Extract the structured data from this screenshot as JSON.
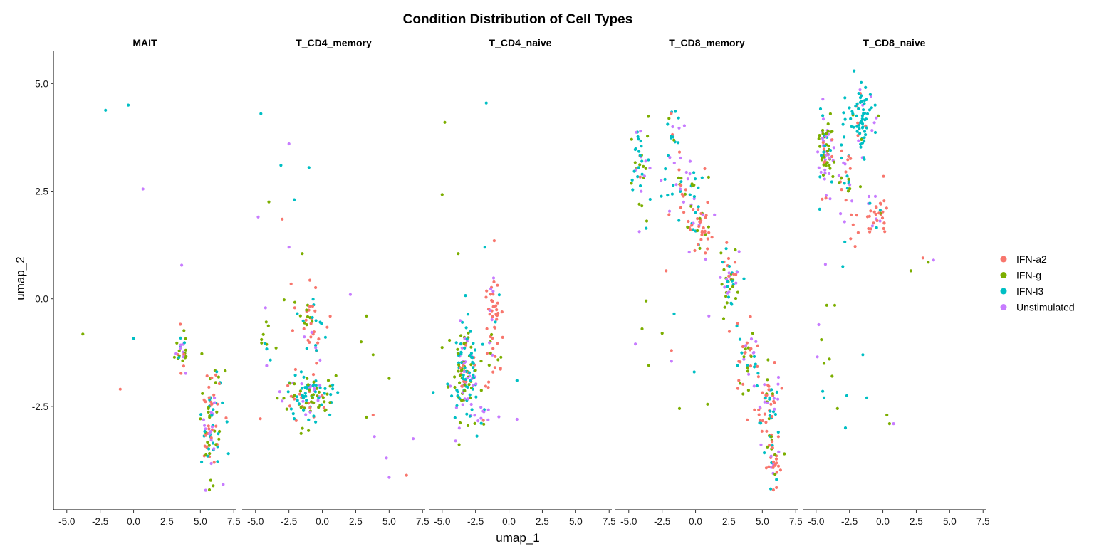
{
  "chart_data": {
    "type": "scatter",
    "title": "Condition Distribution of Cell Types",
    "xlabel": "umap_1",
    "ylabel": "umap_2",
    "xlim": [
      -6.0,
      7.7
    ],
    "ylim": [
      -4.9,
      5.75
    ],
    "xticks": [
      -5.0,
      -2.5,
      0.0,
      2.5,
      5.0,
      7.5
    ],
    "xtick_labels": [
      "-5.0",
      "-2.5",
      "0.0",
      "2.5",
      "5.0",
      "7.5"
    ],
    "yticks": [
      -2.5,
      0.0,
      2.5,
      5.0
    ],
    "ytick_labels": [
      "-2.5",
      "0.0",
      "2.5",
      "5.0"
    ],
    "grid": false,
    "legend_position": "right",
    "legend_labels": [
      "IFN-a2",
      "IFN-g",
      "IFN-l3",
      "Unstimulated"
    ],
    "colors": {
      "IFN-a2": "#F8766D",
      "IFN-g": "#7CAE00",
      "IFN-l3": "#00BFC4",
      "Unstimulated": "#C77CFF"
    },
    "panels": [
      {
        "name": "MAIT",
        "outliers": [
          [
            -2.1,
            4.38,
            "IFN-l3"
          ],
          [
            -0.4,
            4.5,
            "IFN-l3"
          ],
          [
            0.7,
            2.55,
            "Unstimulated"
          ],
          [
            -3.8,
            -0.82,
            "IFN-g"
          ],
          [
            0.0,
            -0.92,
            "IFN-l3"
          ],
          [
            -1.0,
            -2.1,
            "IFN-a2"
          ],
          [
            3.6,
            0.78,
            "Unstimulated"
          ]
        ],
        "clusters": [
          {
            "cx": 3.6,
            "cy": -1.2,
            "sx": 0.35,
            "sy": 0.4,
            "n": 28,
            "w": {
              "IFN-a2": 0.15,
              "IFN-g": 0.4,
              "IFN-l3": 0.2,
              "Unstimulated": 0.25
            }
          },
          {
            "cx": 5.8,
            "cy": -2.9,
            "sx": 0.6,
            "sy": 0.85,
            "n": 95,
            "w": {
              "IFN-a2": 0.3,
              "IFN-g": 0.22,
              "IFN-l3": 0.33,
              "Unstimulated": 0.15
            }
          }
        ]
      },
      {
        "name": "T_CD4_memory",
        "outliers": [
          [
            -4.6,
            4.3,
            "IFN-l3"
          ],
          [
            -2.5,
            3.6,
            "Unstimulated"
          ],
          [
            -3.1,
            3.1,
            "IFN-l3"
          ],
          [
            -1.0,
            3.05,
            "IFN-l3"
          ],
          [
            -2.1,
            2.3,
            "IFN-l3"
          ],
          [
            -4.0,
            2.25,
            "IFN-g"
          ],
          [
            -4.8,
            1.9,
            "Unstimulated"
          ],
          [
            -3.0,
            1.85,
            "IFN-a2"
          ],
          [
            -2.5,
            1.2,
            "Unstimulated"
          ],
          [
            -1.5,
            1.05,
            "IFN-g"
          ],
          [
            3.3,
            -0.4,
            "IFN-g"
          ],
          [
            2.9,
            -1.0,
            "IFN-g"
          ],
          [
            3.8,
            -1.3,
            "IFN-g"
          ],
          [
            5.0,
            -1.85,
            "IFN-g"
          ],
          [
            3.3,
            -2.75,
            "IFN-g"
          ],
          [
            3.8,
            -2.7,
            "IFN-a2"
          ],
          [
            3.9,
            -3.2,
            "Unstimulated"
          ],
          [
            4.8,
            -3.7,
            "Unstimulated"
          ],
          [
            5.0,
            -4.15,
            "Unstimulated"
          ],
          [
            6.3,
            -4.1,
            "IFN-a2"
          ],
          [
            6.8,
            -3.25,
            "Unstimulated"
          ],
          [
            2.1,
            0.1,
            "Unstimulated"
          ]
        ],
        "clusters": [
          {
            "cx": -0.9,
            "cy": -0.5,
            "sx": 0.75,
            "sy": 0.55,
            "n": 50,
            "w": {
              "IFN-a2": 0.45,
              "IFN-g": 0.15,
              "IFN-l3": 0.25,
              "Unstimulated": 0.15
            }
          },
          {
            "cx": -1.2,
            "cy": -2.3,
            "sx": 1.35,
            "sy": 0.42,
            "n": 120,
            "w": {
              "IFN-a2": 0.18,
              "IFN-g": 0.28,
              "IFN-l3": 0.38,
              "Unstimulated": 0.16
            }
          },
          {
            "cx": -4.2,
            "cy": -1.0,
            "sx": 0.3,
            "sy": 0.5,
            "n": 12,
            "w": {
              "IFN-a2": 0.1,
              "IFN-g": 0.5,
              "IFN-l3": 0.2,
              "Unstimulated": 0.2
            }
          }
        ]
      },
      {
        "name": "T_CD4_naive",
        "outliers": [
          [
            -1.7,
            4.55,
            "IFN-l3"
          ],
          [
            -4.8,
            4.1,
            "IFN-g"
          ],
          [
            -5.0,
            2.42,
            "IFN-g"
          ],
          [
            -3.8,
            1.05,
            "IFN-g"
          ],
          [
            -1.8,
            1.2,
            "IFN-l3"
          ],
          [
            -1.1,
            1.35,
            "IFN-a2"
          ],
          [
            0.6,
            -1.9,
            "IFN-l3"
          ],
          [
            0.6,
            -2.8,
            "Unstimulated"
          ]
        ],
        "clusters": [
          {
            "cx": -3.4,
            "cy": -1.7,
            "sx": 0.75,
            "sy": 0.75,
            "n": 150,
            "w": {
              "IFN-a2": 0.05,
              "IFN-g": 0.33,
              "IFN-l3": 0.42,
              "Unstimulated": 0.2
            }
          },
          {
            "cx": -1.3,
            "cy": -0.25,
            "sx": 0.5,
            "sy": 0.5,
            "n": 40,
            "w": {
              "IFN-a2": 0.82,
              "IFN-g": 0.05,
              "IFN-l3": 0.08,
              "Unstimulated": 0.05
            }
          },
          {
            "cx": -1.1,
            "cy": -1.6,
            "sx": 0.5,
            "sy": 0.6,
            "n": 18,
            "w": {
              "IFN-a2": 0.6,
              "IFN-g": 0.1,
              "IFN-l3": 0.15,
              "Unstimulated": 0.15
            }
          },
          {
            "cx": -2.0,
            "cy": -2.7,
            "sx": 0.6,
            "sy": 0.2,
            "n": 14,
            "w": {
              "IFN-a2": 0.2,
              "IFN-g": 0.1,
              "IFN-l3": 0.3,
              "Unstimulated": 0.4
            }
          }
        ]
      },
      {
        "name": "T_CD8_memory",
        "outliers": [
          [
            -2.2,
            0.65,
            "IFN-a2"
          ],
          [
            -3.7,
            -0.05,
            "IFN-g"
          ],
          [
            -2.5,
            -0.8,
            "IFN-g"
          ],
          [
            -4.0,
            -0.7,
            "IFN-g"
          ],
          [
            -1.6,
            -0.35,
            "IFN-l3"
          ],
          [
            -4.5,
            -1.05,
            "Unstimulated"
          ],
          [
            -3.5,
            -1.55,
            "IFN-g"
          ],
          [
            -1.8,
            -1.2,
            "IFN-a2"
          ],
          [
            -1.8,
            -1.45,
            "Unstimulated"
          ],
          [
            -1.2,
            -2.55,
            "IFN-g"
          ],
          [
            -0.1,
            -1.7,
            "IFN-l3"
          ],
          [
            0.9,
            -2.45,
            "IFN-g"
          ],
          [
            1.0,
            -0.4,
            "Unstimulated"
          ]
        ],
        "clusters": [
          {
            "cx": -4.2,
            "cy": 3.2,
            "sx": 0.5,
            "sy": 0.75,
            "n": 45,
            "w": {
              "IFN-a2": 0.05,
              "IFN-g": 0.35,
              "IFN-l3": 0.35,
              "Unstimulated": 0.25
            }
          },
          {
            "cx": -1.5,
            "cy": 3.8,
            "sx": 0.7,
            "sy": 0.55,
            "n": 25,
            "w": {
              "IFN-a2": 0.15,
              "IFN-g": 0.1,
              "IFN-l3": 0.5,
              "Unstimulated": 0.25
            }
          },
          {
            "cx": -0.8,
            "cy": 2.5,
            "sx": 1.3,
            "sy": 0.5,
            "n": 45,
            "w": {
              "IFN-a2": 0.15,
              "IFN-g": 0.2,
              "IFN-l3": 0.45,
              "Unstimulated": 0.2
            }
          },
          {
            "cx": 0.3,
            "cy": 1.6,
            "sx": 0.7,
            "sy": 0.45,
            "n": 45,
            "w": {
              "IFN-a2": 0.6,
              "IFN-g": 0.15,
              "IFN-l3": 0.15,
              "Unstimulated": 0.1
            }
          },
          {
            "cx": 2.6,
            "cy": 0.45,
            "sx": 0.6,
            "sy": 0.5,
            "n": 50,
            "w": {
              "IFN-a2": 0.25,
              "IFN-g": 0.35,
              "IFN-l3": 0.22,
              "Unstimulated": 0.18
            }
          },
          {
            "cx": 3.8,
            "cy": -1.3,
            "sx": 0.55,
            "sy": 0.55,
            "n": 45,
            "w": {
              "IFN-a2": 0.35,
              "IFN-g": 0.3,
              "IFN-l3": 0.15,
              "Unstimulated": 0.2
            }
          },
          {
            "cx": 5.4,
            "cy": -2.5,
            "sx": 0.65,
            "sy": 0.55,
            "n": 60,
            "w": {
              "IFN-a2": 0.4,
              "IFN-g": 0.2,
              "IFN-l3": 0.25,
              "Unstimulated": 0.15
            }
          },
          {
            "cx": 5.9,
            "cy": -3.7,
            "sx": 0.4,
            "sy": 0.45,
            "n": 40,
            "w": {
              "IFN-a2": 0.45,
              "IFN-g": 0.1,
              "IFN-l3": 0.3,
              "Unstimulated": 0.15
            }
          }
        ]
      },
      {
        "name": "T_CD8_naive",
        "outliers": [
          [
            3.0,
            0.95,
            "IFN-a2"
          ],
          [
            3.4,
            0.85,
            "IFN-g"
          ],
          [
            3.8,
            0.9,
            "Unstimulated"
          ],
          [
            2.1,
            0.65,
            "IFN-g"
          ],
          [
            -4.3,
            0.8,
            "Unstimulated"
          ],
          [
            -3.0,
            0.75,
            "IFN-l3"
          ],
          [
            -4.2,
            -0.15,
            "IFN-g"
          ],
          [
            -3.6,
            -0.15,
            "IFN-g"
          ],
          [
            -4.8,
            -0.6,
            "Unstimulated"
          ],
          [
            -4.6,
            -0.95,
            "IFN-g"
          ],
          [
            -4.9,
            -1.35,
            "Unstimulated"
          ],
          [
            -4.4,
            -1.5,
            "IFN-g"
          ],
          [
            -4.0,
            -1.4,
            "IFN-g"
          ],
          [
            -3.8,
            -1.8,
            "IFN-g"
          ],
          [
            -4.5,
            -2.15,
            "IFN-l3"
          ],
          [
            -4.4,
            -2.3,
            "IFN-l3"
          ],
          [
            -2.7,
            -2.25,
            "IFN-l3"
          ],
          [
            -3.4,
            -2.55,
            "IFN-g"
          ],
          [
            -2.8,
            -3.0,
            "IFN-l3"
          ],
          [
            -1.2,
            -2.3,
            "IFN-l3"
          ],
          [
            -1.5,
            -1.3,
            "IFN-l3"
          ],
          [
            0.3,
            -2.7,
            "IFN-g"
          ],
          [
            0.5,
            -2.9,
            "IFN-g"
          ],
          [
            0.8,
            -2.9,
            "Unstimulated"
          ]
        ],
        "clusters": [
          {
            "cx": -4.3,
            "cy": 3.4,
            "sx": 0.45,
            "sy": 0.6,
            "n": 75,
            "w": {
              "IFN-a2": 0.06,
              "IFN-g": 0.45,
              "IFN-l3": 0.14,
              "Unstimulated": 0.35
            }
          },
          {
            "cx": -1.5,
            "cy": 4.3,
            "sx": 0.75,
            "sy": 0.55,
            "n": 75,
            "w": {
              "IFN-a2": 0.06,
              "IFN-g": 0.04,
              "IFN-l3": 0.8,
              "Unstimulated": 0.1
            }
          },
          {
            "cx": -2.9,
            "cy": 2.9,
            "sx": 0.9,
            "sy": 0.55,
            "n": 40,
            "w": {
              "IFN-a2": 0.25,
              "IFN-g": 0.2,
              "IFN-l3": 0.35,
              "Unstimulated": 0.2
            }
          },
          {
            "cx": -0.5,
            "cy": 1.95,
            "sx": 0.55,
            "sy": 0.35,
            "n": 35,
            "w": {
              "IFN-a2": 0.75,
              "IFN-g": 0.05,
              "IFN-l3": 0.1,
              "Unstimulated": 0.1
            }
          },
          {
            "cx": -2.4,
            "cy": 1.6,
            "sx": 0.5,
            "sy": 0.3,
            "n": 8,
            "w": {
              "IFN-a2": 0.8,
              "IFN-g": 0.0,
              "IFN-l3": 0.1,
              "Unstimulated": 0.1
            }
          }
        ]
      }
    ]
  }
}
